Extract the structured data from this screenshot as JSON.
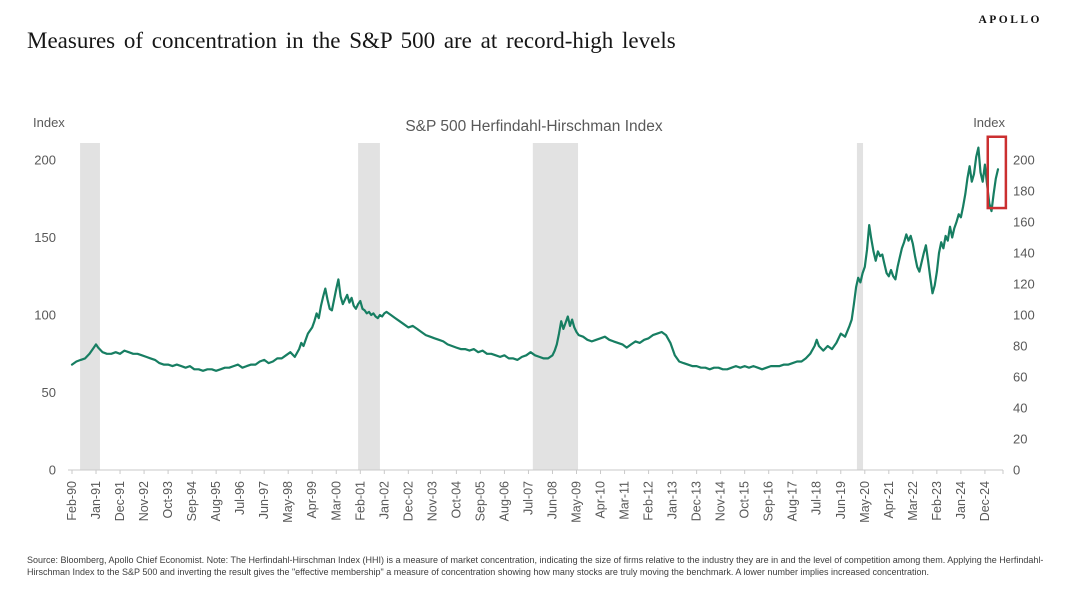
{
  "header": {
    "logo": "APOLLO",
    "title": "Measures of concentration in the S&P 500 are at record-high levels"
  },
  "chart": {
    "title": "S&P 500 Herfindahl-Hirschman Index",
    "left_axis_unit": "Index",
    "right_axis_unit": "Index"
  },
  "footer": {
    "source_note": "Source: Bloomberg, Apollo Chief Economist. Note: The Herfindahl-Hirschman Index (HHI) is a measure of market concentration, indicating the size of firms relative to the industry they are in and the level of competition among them. Applying the Herfindahl-Hirschman Index to the S&P 500 and inverting the result gives the \"effective membership\" a measure of concentration showing how many stocks are truly moving the benchmark. A lower number implies increased concentration."
  },
  "chart_data": {
    "type": "line",
    "title": "S&P 500 Herfindahl-Hirschman Index",
    "xlabel": "",
    "ylabel": "Index",
    "x_unit": "months since Feb-1990",
    "x_tick_interval_months": 11,
    "x_tick_labels": [
      "Feb-90",
      "Jan-91",
      "Dec-91",
      "Nov-92",
      "Oct-93",
      "Sep-94",
      "Aug-95",
      "Jul-96",
      "Jun-97",
      "May-98",
      "Apr-99",
      "Mar-00",
      "Feb-01",
      "Jan-02",
      "Dec-02",
      "Nov-03",
      "Oct-04",
      "Sep-05",
      "Aug-06",
      "Jul-07",
      "Jun-08",
      "May-09",
      "Apr-10",
      "Mar-11",
      "Feb-12",
      "Jan-13",
      "Dec-13",
      "Nov-14",
      "Oct-15",
      "Sep-16",
      "Aug-17",
      "Jul-18",
      "Jun-19",
      "May-20",
      "Apr-21",
      "Mar-22",
      "Feb-23",
      "Jan-24",
      "Dec-24"
    ],
    "left_axis": {
      "label": "Index",
      "ticks": [
        0,
        50,
        100,
        150,
        200
      ],
      "range": [
        0,
        211
      ]
    },
    "right_axis": {
      "label": "Index",
      "ticks": [
        0,
        20,
        40,
        60,
        80,
        100,
        120,
        140,
        160,
        180,
        200
      ],
      "range": [
        0,
        211
      ]
    },
    "grid": false,
    "legend": false,
    "line_color": "#177e62",
    "band_color": "#e2e2e2",
    "axis_color": "#c9c9c9",
    "tick_text_color": "#595959",
    "recession_bands_months": [
      [
        3.7,
        12.8
      ],
      [
        131,
        141
      ],
      [
        211,
        231.7
      ],
      [
        359.4,
        362.2
      ]
    ],
    "annotation_box": {
      "color": "#cb2f30",
      "month_start": 419.3,
      "month_end": 427.6,
      "value_bottom": 169,
      "value_top": 215
    },
    "series": [
      {
        "name": "S&P 500 Herfindahl-Hirschman Index",
        "points": [
          [
            0,
            68
          ],
          [
            2,
            70
          ],
          [
            4,
            71
          ],
          [
            6,
            72
          ],
          [
            8,
            75
          ],
          [
            10,
            79
          ],
          [
            11,
            81
          ],
          [
            12,
            79
          ],
          [
            14,
            76
          ],
          [
            16,
            75
          ],
          [
            18,
            75
          ],
          [
            20,
            76
          ],
          [
            22,
            75
          ],
          [
            24,
            77
          ],
          [
            26,
            76
          ],
          [
            28,
            75
          ],
          [
            30,
            75
          ],
          [
            32,
            74
          ],
          [
            34,
            73
          ],
          [
            36,
            72
          ],
          [
            38,
            71
          ],
          [
            40,
            69
          ],
          [
            42,
            68
          ],
          [
            44,
            68
          ],
          [
            46,
            67
          ],
          [
            48,
            68
          ],
          [
            50,
            67
          ],
          [
            52,
            66
          ],
          [
            54,
            67
          ],
          [
            56,
            65
          ],
          [
            58,
            65
          ],
          [
            60,
            64
          ],
          [
            62,
            65
          ],
          [
            64,
            65
          ],
          [
            66,
            64
          ],
          [
            68,
            65
          ],
          [
            70,
            66
          ],
          [
            72,
            66
          ],
          [
            74,
            67
          ],
          [
            76,
            68
          ],
          [
            78,
            66
          ],
          [
            80,
            67
          ],
          [
            82,
            68
          ],
          [
            84,
            68
          ],
          [
            86,
            70
          ],
          [
            88,
            71
          ],
          [
            90,
            69
          ],
          [
            92,
            70
          ],
          [
            94,
            72
          ],
          [
            96,
            72
          ],
          [
            98,
            74
          ],
          [
            100,
            76
          ],
          [
            102,
            73
          ],
          [
            104,
            78
          ],
          [
            105,
            82
          ],
          [
            106,
            80
          ],
          [
            107,
            84
          ],
          [
            108,
            88
          ],
          [
            110,
            92
          ],
          [
            111,
            96
          ],
          [
            112,
            101
          ],
          [
            113,
            98
          ],
          [
            114,
            106
          ],
          [
            115,
            112
          ],
          [
            116,
            117
          ],
          [
            117,
            110
          ],
          [
            118,
            104
          ],
          [
            119,
            103
          ],
          [
            120,
            110
          ],
          [
            121,
            117
          ],
          [
            122,
            123
          ],
          [
            123,
            112
          ],
          [
            124,
            107
          ],
          [
            125,
            110
          ],
          [
            126,
            113
          ],
          [
            127,
            108
          ],
          [
            128,
            111
          ],
          [
            129,
            106
          ],
          [
            130,
            104
          ],
          [
            131,
            107
          ],
          [
            132,
            109
          ],
          [
            133,
            104
          ],
          [
            134,
            103
          ],
          [
            135,
            101
          ],
          [
            136,
            102
          ],
          [
            137,
            100
          ],
          [
            138,
            101
          ],
          [
            139,
            99
          ],
          [
            140,
            98
          ],
          [
            141,
            100
          ],
          [
            142,
            99
          ],
          [
            143,
            101
          ],
          [
            144,
            102
          ],
          [
            146,
            100
          ],
          [
            148,
            98
          ],
          [
            150,
            96
          ],
          [
            152,
            94
          ],
          [
            154,
            92
          ],
          [
            156,
            93
          ],
          [
            158,
            91
          ],
          [
            160,
            89
          ],
          [
            162,
            87
          ],
          [
            164,
            86
          ],
          [
            166,
            85
          ],
          [
            168,
            84
          ],
          [
            170,
            83
          ],
          [
            172,
            81
          ],
          [
            174,
            80
          ],
          [
            176,
            79
          ],
          [
            178,
            78
          ],
          [
            180,
            78
          ],
          [
            182,
            77
          ],
          [
            184,
            78
          ],
          [
            186,
            76
          ],
          [
            188,
            77
          ],
          [
            190,
            75
          ],
          [
            192,
            75
          ],
          [
            194,
            74
          ],
          [
            196,
            73
          ],
          [
            198,
            74
          ],
          [
            200,
            72
          ],
          [
            202,
            72
          ],
          [
            204,
            71
          ],
          [
            206,
            73
          ],
          [
            208,
            74
          ],
          [
            210,
            76
          ],
          [
            212,
            74
          ],
          [
            214,
            73
          ],
          [
            216,
            72
          ],
          [
            218,
            72
          ],
          [
            220,
            74
          ],
          [
            221,
            77
          ],
          [
            222,
            81
          ],
          [
            223,
            88
          ],
          [
            224,
            96
          ],
          [
            225,
            91
          ],
          [
            226,
            95
          ],
          [
            227,
            99
          ],
          [
            228,
            93
          ],
          [
            229,
            97
          ],
          [
            230,
            92
          ],
          [
            231,
            89
          ],
          [
            232,
            87
          ],
          [
            234,
            86
          ],
          [
            236,
            84
          ],
          [
            238,
            83
          ],
          [
            240,
            84
          ],
          [
            242,
            85
          ],
          [
            244,
            86
          ],
          [
            246,
            84
          ],
          [
            248,
            83
          ],
          [
            250,
            82
          ],
          [
            252,
            81
          ],
          [
            254,
            79
          ],
          [
            256,
            81
          ],
          [
            258,
            83
          ],
          [
            260,
            82
          ],
          [
            262,
            84
          ],
          [
            264,
            85
          ],
          [
            266,
            87
          ],
          [
            268,
            88
          ],
          [
            270,
            89
          ],
          [
            272,
            87
          ],
          [
            274,
            82
          ],
          [
            276,
            74
          ],
          [
            278,
            70
          ],
          [
            280,
            69
          ],
          [
            282,
            68
          ],
          [
            284,
            67
          ],
          [
            286,
            67
          ],
          [
            288,
            66
          ],
          [
            290,
            66
          ],
          [
            292,
            65
          ],
          [
            294,
            66
          ],
          [
            296,
            66
          ],
          [
            298,
            65
          ],
          [
            300,
            65
          ],
          [
            302,
            66
          ],
          [
            304,
            67
          ],
          [
            306,
            66
          ],
          [
            308,
            67
          ],
          [
            310,
            66
          ],
          [
            312,
            67
          ],
          [
            314,
            66
          ],
          [
            316,
            65
          ],
          [
            318,
            66
          ],
          [
            320,
            67
          ],
          [
            322,
            67
          ],
          [
            324,
            67
          ],
          [
            326,
            68
          ],
          [
            328,
            68
          ],
          [
            330,
            69
          ],
          [
            332,
            70
          ],
          [
            334,
            70
          ],
          [
            336,
            72
          ],
          [
            338,
            75
          ],
          [
            340,
            80
          ],
          [
            341,
            84
          ],
          [
            342,
            80
          ],
          [
            344,
            77
          ],
          [
            346,
            80
          ],
          [
            348,
            78
          ],
          [
            350,
            82
          ],
          [
            352,
            88
          ],
          [
            354,
            86
          ],
          [
            356,
            93
          ],
          [
            357,
            97
          ],
          [
            358,
            107
          ],
          [
            359,
            118
          ],
          [
            360,
            124
          ],
          [
            361,
            121
          ],
          [
            362,
            127
          ],
          [
            363,
            131
          ],
          [
            364,
            142
          ],
          [
            365,
            158
          ],
          [
            366,
            149
          ],
          [
            367,
            141
          ],
          [
            368,
            135
          ],
          [
            369,
            141
          ],
          [
            370,
            138
          ],
          [
            371,
            139
          ],
          [
            372,
            133
          ],
          [
            373,
            127
          ],
          [
            374,
            125
          ],
          [
            375,
            129
          ],
          [
            376,
            125
          ],
          [
            377,
            123
          ],
          [
            378,
            131
          ],
          [
            379,
            137
          ],
          [
            380,
            143
          ],
          [
            381,
            147
          ],
          [
            382,
            152
          ],
          [
            383,
            148
          ],
          [
            384,
            151
          ],
          [
            385,
            146
          ],
          [
            386,
            138
          ],
          [
            387,
            131
          ],
          [
            388,
            128
          ],
          [
            389,
            134
          ],
          [
            390,
            140
          ],
          [
            391,
            145
          ],
          [
            392,
            135
          ],
          [
            393,
            124
          ],
          [
            394,
            114
          ],
          [
            395,
            119
          ],
          [
            396,
            128
          ],
          [
            397,
            140
          ],
          [
            398,
            147
          ],
          [
            399,
            143
          ],
          [
            400,
            151
          ],
          [
            401,
            148
          ],
          [
            402,
            157
          ],
          [
            403,
            150
          ],
          [
            404,
            156
          ],
          [
            405,
            160
          ],
          [
            406,
            165
          ],
          [
            407,
            163
          ],
          [
            408,
            170
          ],
          [
            409,
            178
          ],
          [
            410,
            188
          ],
          [
            411,
            196
          ],
          [
            412,
            186
          ],
          [
            413,
            191
          ],
          [
            414,
            202
          ],
          [
            415,
            208
          ],
          [
            416,
            192
          ],
          [
            417,
            186
          ],
          [
            418,
            197
          ],
          [
            419,
            184
          ],
          [
            420,
            172
          ],
          [
            421,
            167
          ],
          [
            422,
            178
          ],
          [
            423,
            188
          ],
          [
            424,
            194
          ]
        ]
      }
    ]
  }
}
